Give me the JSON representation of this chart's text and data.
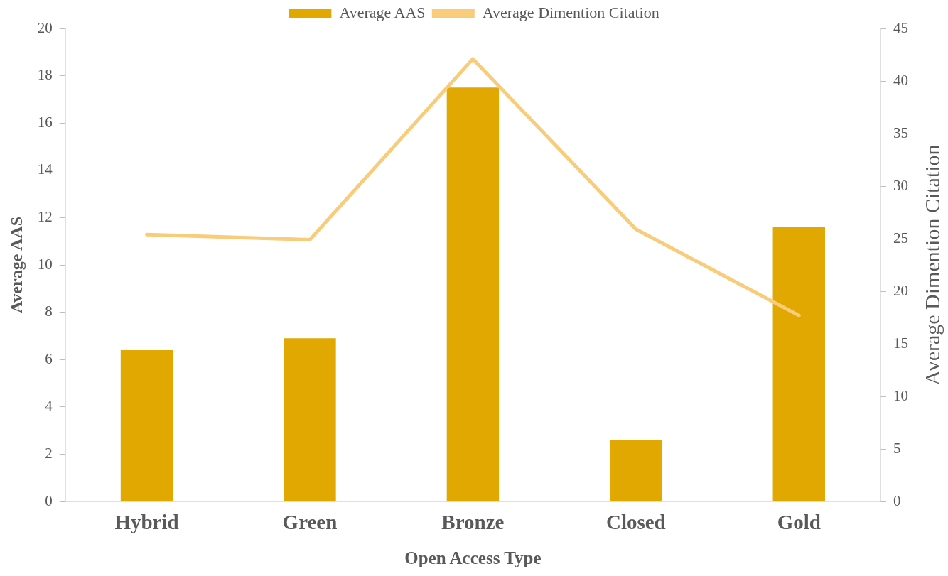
{
  "chart_data": {
    "type": "bar",
    "xlabel": "Open Access Type",
    "ylabel": "Average AAS",
    "y2label": "Average Dimention Citation",
    "categories": [
      "Hybrid",
      "Green",
      "Bronze",
      "Closed",
      "Gold"
    ],
    "series": [
      {
        "name": "Average AAS",
        "color": "#e0a800",
        "values": [
          6.4,
          6.9,
          17.5,
          2.6,
          11.6
        ]
      },
      {
        "name": "Average Dimention Citation",
        "type": "line",
        "axis": "y2",
        "color": "#f8cc7a",
        "values": [
          25.4,
          24.9,
          42.1,
          25.9,
          17.7
        ]
      }
    ],
    "ylim": [
      0,
      20
    ],
    "yticks": [
      0,
      2,
      4,
      6,
      8,
      10,
      12,
      14,
      16,
      18,
      20
    ],
    "y2lim": [
      0,
      45
    ],
    "y2ticks": [
      0,
      5,
      10,
      15,
      20,
      25,
      30,
      35,
      40,
      45
    ],
    "grid": false,
    "legend": "top",
    "marker": "none"
  }
}
